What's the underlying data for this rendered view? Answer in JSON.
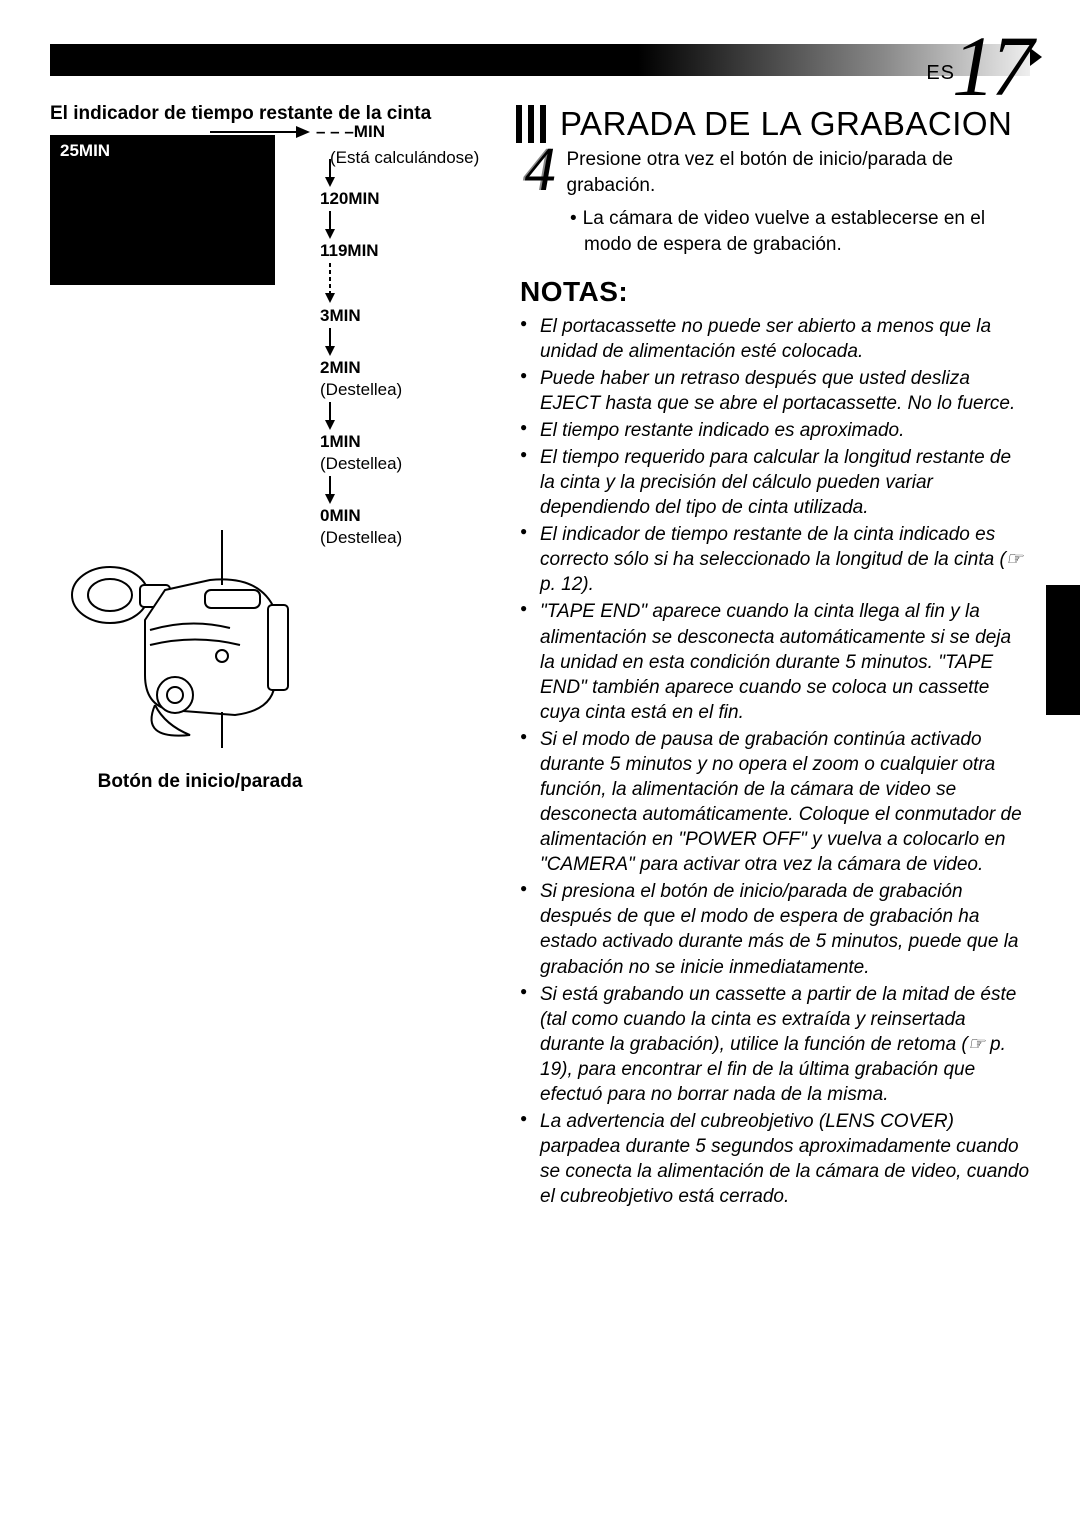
{
  "page": {
    "lang": "ES",
    "number": "17"
  },
  "left": {
    "title": "El indicador de tiempo restante de la cinta",
    "screen_label": "25MIN",
    "arrow_target_label": "– – –MIN",
    "calculating": "(Está calculándose)",
    "times": [
      {
        "t": "120MIN",
        "sub": ""
      },
      {
        "t": "119MIN",
        "sub": ""
      },
      {
        "t": "3MIN",
        "sub": ""
      },
      {
        "t": "2MIN",
        "sub": "(Destellea)"
      },
      {
        "t": "1MIN",
        "sub": "(Destellea)"
      },
      {
        "t": "0MIN",
        "sub": "(Destellea)"
      }
    ],
    "button_label": "Botón de inicio/parada"
  },
  "right": {
    "section_title": "PARADA DE LA GRABACION",
    "step_num": "4",
    "step_text": "Presione otra vez el botón de inicio/parada de grabación.",
    "step_bullet": "La cámara de video vuelve a establecerse en el modo de espera de grabación.",
    "notes_title": "NOTAS:",
    "notes": [
      "El portacassette no puede ser abierto a menos que la unidad de alimentación esté colocada.",
      "Puede haber un retraso después que usted desliza EJECT hasta que se abre el portacassette. No lo fuerce.",
      "El tiempo restante indicado es aproximado.",
      "El tiempo requerido para calcular la longitud restante de la cinta y la precisión del cálculo pueden variar dependiendo del tipo de cinta utilizada.",
      "El indicador de tiempo restante de la cinta indicado es correcto sólo si ha seleccionado la longitud de la cinta (☞ p. 12).",
      "\"TAPE END\" aparece cuando la cinta llega al fin y la alimentación se desconecta automáticamente si se deja la unidad en esta condición durante 5 minutos. \"TAPE END\" también aparece cuando se coloca un cassette cuya cinta está en el fin.",
      "Si el modo de pausa de grabación continúa activado durante 5 minutos y no opera el zoom o cualquier otra función, la alimentación de la cámara de video se desconecta automáticamente. Coloque el conmutador de alimentación en \"POWER OFF\" y vuelva a colocarlo en \"CAMERA\" para activar otra vez la cámara de video.",
      "Si presiona el botón de inicio/parada de grabación después de que el modo de espera de grabación ha estado activado durante más de 5 minutos, puede que la grabación no se inicie inmediatamente.",
      "Si está grabando un cassette a partir de la mitad de éste (tal como cuando la cinta es extraída y reinsertada durante la grabación), utilice la función de retoma (☞ p. 19), para encontrar el fin de la última grabación que efectuó para no borrar nada de la misma.",
      "La advertencia del cubreobjetivo (LENS COVER) parpadea durante 5 segundos aproximadamente cuando se conecta la alimentación de la cámara de video, cuando el cubreobjetivo está cerrado."
    ]
  }
}
